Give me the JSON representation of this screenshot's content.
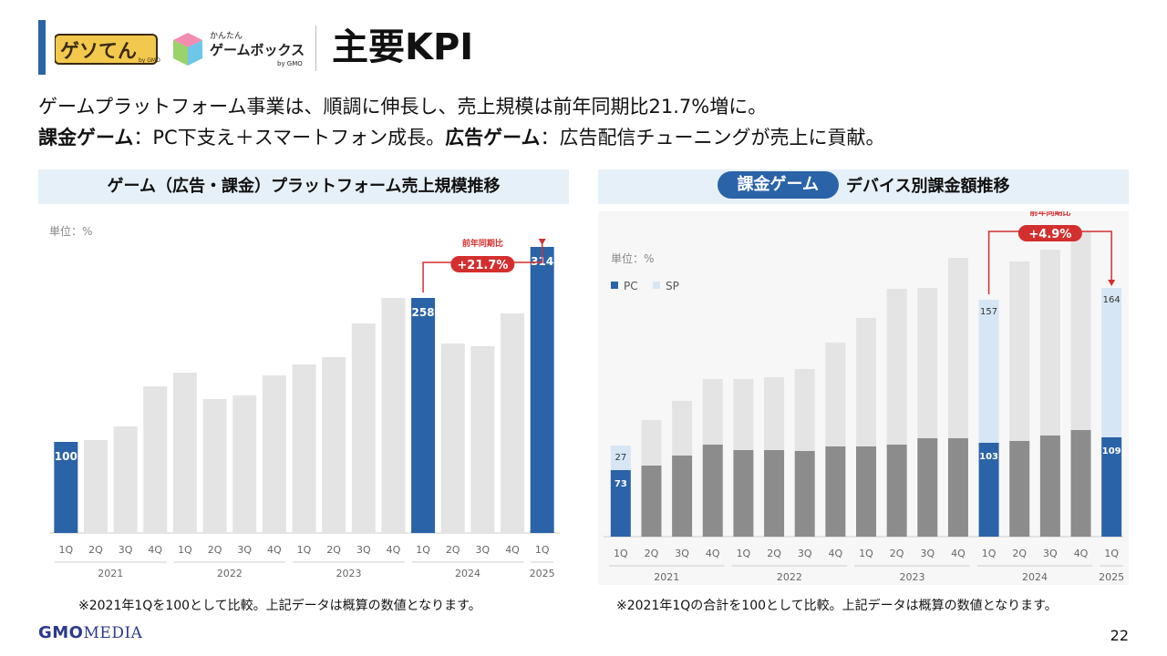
{
  "header": {
    "title": "主要KPI",
    "logo1_text": "ゲソてん",
    "logo1_sub": "by GMO",
    "logo2_top": "かんたん",
    "logo2_main": "ゲームボックス",
    "logo2_sub": "by GMO"
  },
  "summary": {
    "line1": "ゲームプラットフォーム事業は、順調に伸長し、売上規模は前年同期比21.7%増に。",
    "line2_bold1": "課金ゲーム",
    "line2_text1": "：PC下支え＋スマートフォン成長。",
    "line2_bold2": "広告ゲーム",
    "line2_text2": "：広告配信チューニングが売上に貢献。"
  },
  "left_panel": {
    "header": "ゲーム（広告・課金）プラットフォーム売上規模推移",
    "footnote": "※2021年1Qを100として比較。上記データは概算の数値となります。"
  },
  "right_panel": {
    "pill": "課金ゲーム",
    "header": "デバイス別課金額推移",
    "footnote": "※2021年1Qの合計を100として比較。上記データは概算の数値となります。"
  },
  "chart_data": [
    {
      "type": "bar",
      "unit_label": "単位：%",
      "categories": [
        "1Q",
        "2Q",
        "3Q",
        "4Q",
        "1Q",
        "2Q",
        "3Q",
        "4Q",
        "1Q",
        "2Q",
        "3Q",
        "4Q",
        "1Q",
        "2Q",
        "3Q",
        "4Q",
        "1Q"
      ],
      "years": [
        {
          "label": "2021",
          "start": 0,
          "end": 3
        },
        {
          "label": "2022",
          "start": 4,
          "end": 7
        },
        {
          "label": "2023",
          "start": 8,
          "end": 11
        },
        {
          "label": "2024",
          "start": 12,
          "end": 15
        },
        {
          "label": "2025",
          "start": 16,
          "end": 16
        }
      ],
      "values": [
        100,
        102,
        117,
        161,
        176,
        147,
        151,
        173,
        185,
        193,
        230,
        258,
        258,
        208,
        205,
        241,
        314
      ],
      "highlight": [
        0,
        12,
        16
      ],
      "data_labels": {
        "0": "100",
        "12": "258",
        "16": "314"
      },
      "ylim": [
        0,
        330
      ],
      "annotation": {
        "from": 12,
        "to": 16,
        "label_top": "前年同期比",
        "label_badge": "+21.7%"
      },
      "colors": {
        "highlight": "#2b63a8",
        "normal": "#e4e4e4",
        "annotation": "#d32f2f"
      }
    },
    {
      "type": "stacked_bar",
      "unit_label": "単位：%",
      "categories": [
        "1Q",
        "2Q",
        "3Q",
        "4Q",
        "1Q",
        "2Q",
        "3Q",
        "4Q",
        "1Q",
        "2Q",
        "3Q",
        "4Q",
        "1Q",
        "2Q",
        "3Q",
        "4Q",
        "1Q"
      ],
      "years": [
        {
          "label": "2021",
          "start": 0,
          "end": 3
        },
        {
          "label": "2022",
          "start": 4,
          "end": 7
        },
        {
          "label": "2023",
          "start": 8,
          "end": 11
        },
        {
          "label": "2024",
          "start": 12,
          "end": 15
        },
        {
          "label": "2025",
          "start": 16,
          "end": 16
        }
      ],
      "series": [
        {
          "name": "PC",
          "values": [
            73,
            78,
            89,
            101,
            95,
            95,
            94,
            99,
            99,
            101,
            108,
            108,
            103,
            105,
            111,
            117,
            109
          ]
        },
        {
          "name": "SP",
          "values": [
            27,
            50,
            60,
            72,
            78,
            80,
            90,
            114,
            141,
            171,
            165,
            198,
            157,
            197,
            204,
            218,
            164
          ]
        }
      ],
      "highlight": [
        0,
        12,
        16
      ],
      "data_labels": {
        "PC": {
          "0": "73",
          "12": "103",
          "16": "109"
        },
        "SP": {
          "0": "27",
          "12": "157",
          "16": "164"
        }
      },
      "ylim": [
        0,
        340
      ],
      "legend": {
        "position": "top-left",
        "items": [
          "PC",
          "SP"
        ]
      },
      "annotation": {
        "from": 12,
        "to": 16,
        "label_top": "前年同期比",
        "label_badge": "+4.9%"
      },
      "colors": {
        "pc_highlight": "#2b63a8",
        "sp_highlight": "#d6e6f5",
        "pc_normal": "#8c8c8c",
        "sp_normal": "#e4e4e4",
        "annotation": "#d32f2f"
      }
    }
  ],
  "footer": {
    "company_bold": "GMO",
    "company_media": "MEDIA",
    "page_number": "22"
  }
}
